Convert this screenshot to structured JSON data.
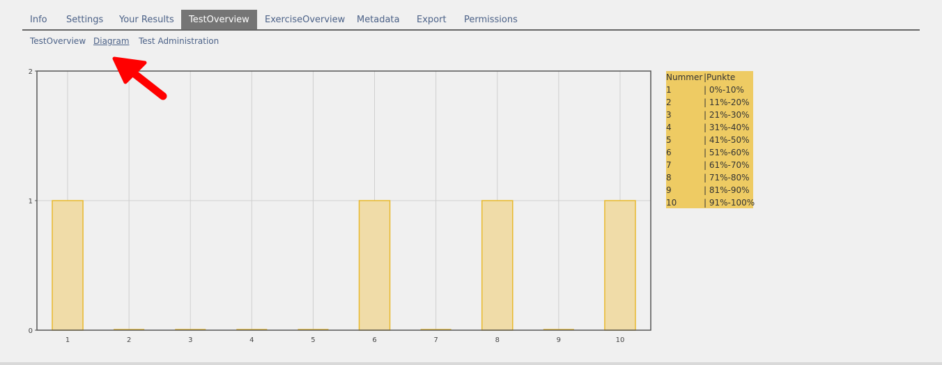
{
  "tabs": [
    {
      "label": "Info",
      "active": false
    },
    {
      "label": "Settings",
      "active": false
    },
    {
      "label": "Your Results",
      "active": false
    },
    {
      "label": "TestOverview",
      "active": true
    },
    {
      "label": "ExerciseOverview",
      "active": false
    },
    {
      "label": "Metadata",
      "active": false
    },
    {
      "label": "Export",
      "active": false
    },
    {
      "label": "Permissions",
      "active": false
    }
  ],
  "subtabs": [
    {
      "label": "TestOverview",
      "current": false
    },
    {
      "label": "Diagram",
      "current": true
    },
    {
      "label": "Test Administration",
      "current": false
    }
  ],
  "chart_data": {
    "type": "bar",
    "categories": [
      "1",
      "2",
      "3",
      "4",
      "5",
      "6",
      "7",
      "8",
      "9",
      "10"
    ],
    "values": [
      1,
      0,
      0,
      0,
      0,
      1,
      0,
      1,
      0,
      1
    ],
    "ylim": [
      0,
      2
    ],
    "yticks": [
      "0",
      "1",
      "2"
    ],
    "grid": true,
    "bar_color": "#f0dca8",
    "bar_edge_color": "#e8b92e"
  },
  "legend": {
    "header": [
      "Nummer",
      "|Punkte"
    ],
    "rows": [
      [
        "1",
        "| 0%-10%"
      ],
      [
        "2",
        "| 11%-20%"
      ],
      [
        "3",
        "| 21%-30%"
      ],
      [
        "4",
        "| 31%-40%"
      ],
      [
        "5",
        "| 41%-50%"
      ],
      [
        "6",
        "| 51%-60%"
      ],
      [
        "7",
        "| 61%-70%"
      ],
      [
        "8",
        "| 71%-80%"
      ],
      [
        "9",
        "| 81%-90%"
      ],
      [
        "10",
        "| 91%-100%"
      ]
    ]
  },
  "arrow_color": "#ff0000"
}
